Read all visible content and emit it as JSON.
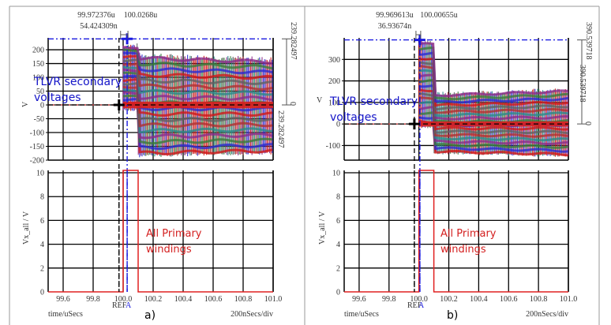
{
  "chart_data": [
    {
      "type": "line",
      "panel_label": "a)",
      "x_unit_label": "time/uSecs",
      "x_scale_label": "200nSecs/div",
      "x_range": [
        99.5,
        101.0
      ],
      "x_ticks": [
        "99.6",
        "99.8",
        "100.0",
        "100.2",
        "100.4",
        "100.6",
        "100.8",
        "101.0"
      ],
      "x_tick_values": [
        99.6,
        99.8,
        100.0,
        100.2,
        100.4,
        100.6,
        100.8,
        101.0
      ],
      "cursor_labels": {
        "ref": "REF",
        "a": "A"
      },
      "cursors": {
        "ref_time": "99.972376u",
        "a_time": "100.0268u",
        "delta_time": "54.424309n",
        "ref_x": 99.972376,
        "a_x": 100.0268,
        "delta_y_outer": "239.282497",
        "delta_y_inner": "239.282497",
        "zero_label": "0"
      },
      "top": {
        "ylabel": "V",
        "ylim": [
          -200,
          243
        ],
        "y_ticks": [
          200,
          150,
          100,
          50,
          0,
          -50,
          -100,
          -150,
          -200
        ],
        "y_tick_labels": [
          "200",
          "150",
          "100",
          "50",
          "0",
          "-50",
          "-100",
          "-150",
          "-200"
        ],
        "grid_y": [
          200,
          150,
          100,
          50,
          0,
          -50,
          -100,
          -150
        ],
        "annotation": [
          "TLVR secondary",
          "voltages"
        ],
        "cursor_peak": 239.282497,
        "series_description": "Multiple secondary winding voltages (colored bands) oscillating; onset at ~100.0 us, initial peak ~210 V, then envelope ~+/-180 V",
        "envelope": {
          "start_x": 100.0,
          "initial_until_x": 100.1,
          "initial_max": 215,
          "initial_min": -20,
          "steady_max": 180,
          "steady_min": -185,
          "steady_end_max": 165,
          "steady_end_min": -175
        },
        "band_colors": [
          "#d01818",
          "#2a2ad0",
          "#3a7a3a",
          "#8a2a8a",
          "#2a8a8a",
          "#b03030",
          "#606060"
        ]
      },
      "bottom": {
        "ylabel": "Vx_all / V",
        "ylim": [
          0,
          10.2
        ],
        "y_ticks": [
          10,
          8,
          6,
          4,
          2,
          0
        ],
        "y_tick_labels": [
          "10",
          "8",
          "6",
          "4",
          "2",
          "0"
        ],
        "annotation": [
          "All Primary",
          "windings"
        ],
        "pulse": {
          "start": 100.0,
          "end": 100.1,
          "high": 10.2,
          "low": 0,
          "color": "#e02020"
        }
      }
    },
    {
      "type": "line",
      "panel_label": "b)",
      "x_unit_label": "time/uSecs",
      "x_scale_label": "200nSecs/div",
      "x_range": [
        99.5,
        101.0
      ],
      "x_ticks": [
        "99.6",
        "99.8",
        "100.0",
        "100.2",
        "100.4",
        "100.6",
        "100.8",
        "101.0"
      ],
      "x_tick_values": [
        99.6,
        99.8,
        100.0,
        100.2,
        100.4,
        100.6,
        100.8,
        101.0
      ],
      "cursor_labels": {
        "ref": "REF",
        "a": "A"
      },
      "cursors": {
        "ref_time": "99.969613u",
        "a_time": "100.00655u",
        "delta_time": "36.93674n",
        "ref_x": 99.969613,
        "a_x": 100.00655,
        "delta_y_outer": "390.539718",
        "delta_y_inner": "390.539718",
        "zero_label": "0"
      },
      "top": {
        "ylabel": "V",
        "ylim": [
          -168,
          400
        ],
        "y_ticks": [
          300,
          200,
          100,
          0,
          -100
        ],
        "y_tick_labels": [
          "300",
          "200",
          "100",
          "0",
          "-100"
        ],
        "grid_y": [
          300,
          200,
          100,
          0,
          -100
        ],
        "annotation": [
          "TLVR secondary",
          "voltages"
        ],
        "cursor_peak": 390.539718,
        "series_description": "Multiple secondary winding voltages; large spike to ~380 V between 100.0 and 100.1 us, then envelope ~+140/-140 V",
        "envelope": {
          "start_x": 100.0,
          "initial_until_x": 100.1,
          "initial_max": 380,
          "initial_min": -15,
          "steady_max": 140,
          "steady_min": -135,
          "steady_end_max": 160,
          "steady_end_min": -150
        },
        "band_colors": [
          "#d01818",
          "#2a2ad0",
          "#3a7a3a",
          "#8a2a8a",
          "#2a8a8a",
          "#b03030",
          "#606060"
        ]
      },
      "bottom": {
        "ylabel": "Vx_all / V",
        "ylim": [
          0,
          10.2
        ],
        "y_ticks": [
          10,
          8,
          6,
          4,
          2,
          0
        ],
        "y_tick_labels": [
          "10",
          "8",
          "6",
          "4",
          "2",
          "0"
        ],
        "annotation": [
          "All Primary",
          "windings"
        ],
        "pulse": {
          "start": 100.0,
          "end": 100.1,
          "high": 10.2,
          "low": 0,
          "color": "#e02020"
        }
      }
    }
  ],
  "colors": {
    "cursor_blue": "#1a1ae0",
    "ref_black": "#000000",
    "annotation_blue": "#1414c8",
    "annotation_red": "#d42020",
    "pulse_red": "#e02020"
  }
}
